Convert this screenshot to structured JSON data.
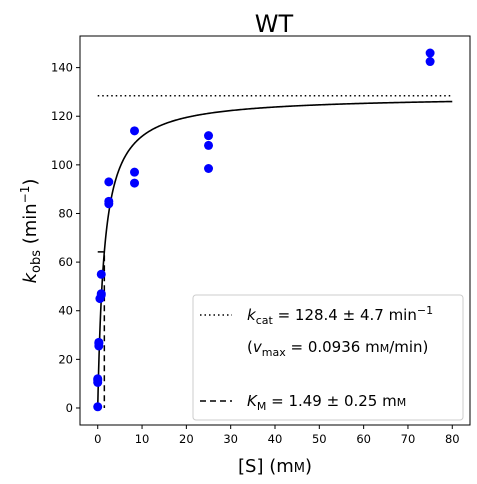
{
  "chart_data": {
    "type": "scatter",
    "title": "WT",
    "xlabel": "[S] (mM)",
    "ylabel": "k_obs (min^-1)",
    "xlim": [
      -4,
      84
    ],
    "ylim": [
      -7,
      153
    ],
    "xticks": [
      0,
      10,
      20,
      30,
      40,
      50,
      60,
      70,
      80
    ],
    "yticks": [
      0,
      20,
      40,
      60,
      80,
      100,
      120,
      140
    ],
    "grid": false,
    "legend_position": "lower-right",
    "points": {
      "color": "#0000ff",
      "x": [
        0,
        0,
        0,
        0,
        0.25,
        0.25,
        0.25,
        0.5,
        0.8,
        0.8,
        0.8,
        2.5,
        2.5,
        2.5,
        8.3,
        8.3,
        8.3,
        25,
        25,
        25,
        75,
        75
      ],
      "y": [
        0.5,
        10.5,
        11.5,
        12,
        25.5,
        26.5,
        27,
        45,
        46.5,
        47,
        55,
        84,
        85,
        93,
        92.5,
        97,
        114,
        98.5,
        108,
        112,
        142.5,
        146
      ]
    },
    "fit_curve": {
      "model": "Michaelis-Menten",
      "kcat": 128.4,
      "KM": 1.49,
      "x_range": [
        0,
        80
      ],
      "color": "#000000"
    },
    "kcat_line": {
      "y": 128.4,
      "x_range": [
        0,
        80
      ],
      "style": "dotted"
    },
    "km_line": {
      "x": 1.49,
      "y_range": [
        0,
        64.2
      ],
      "style": "dashed"
    },
    "legend": {
      "kcat_label": "k_cat = 128.4 ± 4.7 min^-1",
      "vmax_label": "(v_max = 0.0936 mM/min)",
      "km_label": "K_M = 1.49 ± 0.25 mM"
    }
  }
}
